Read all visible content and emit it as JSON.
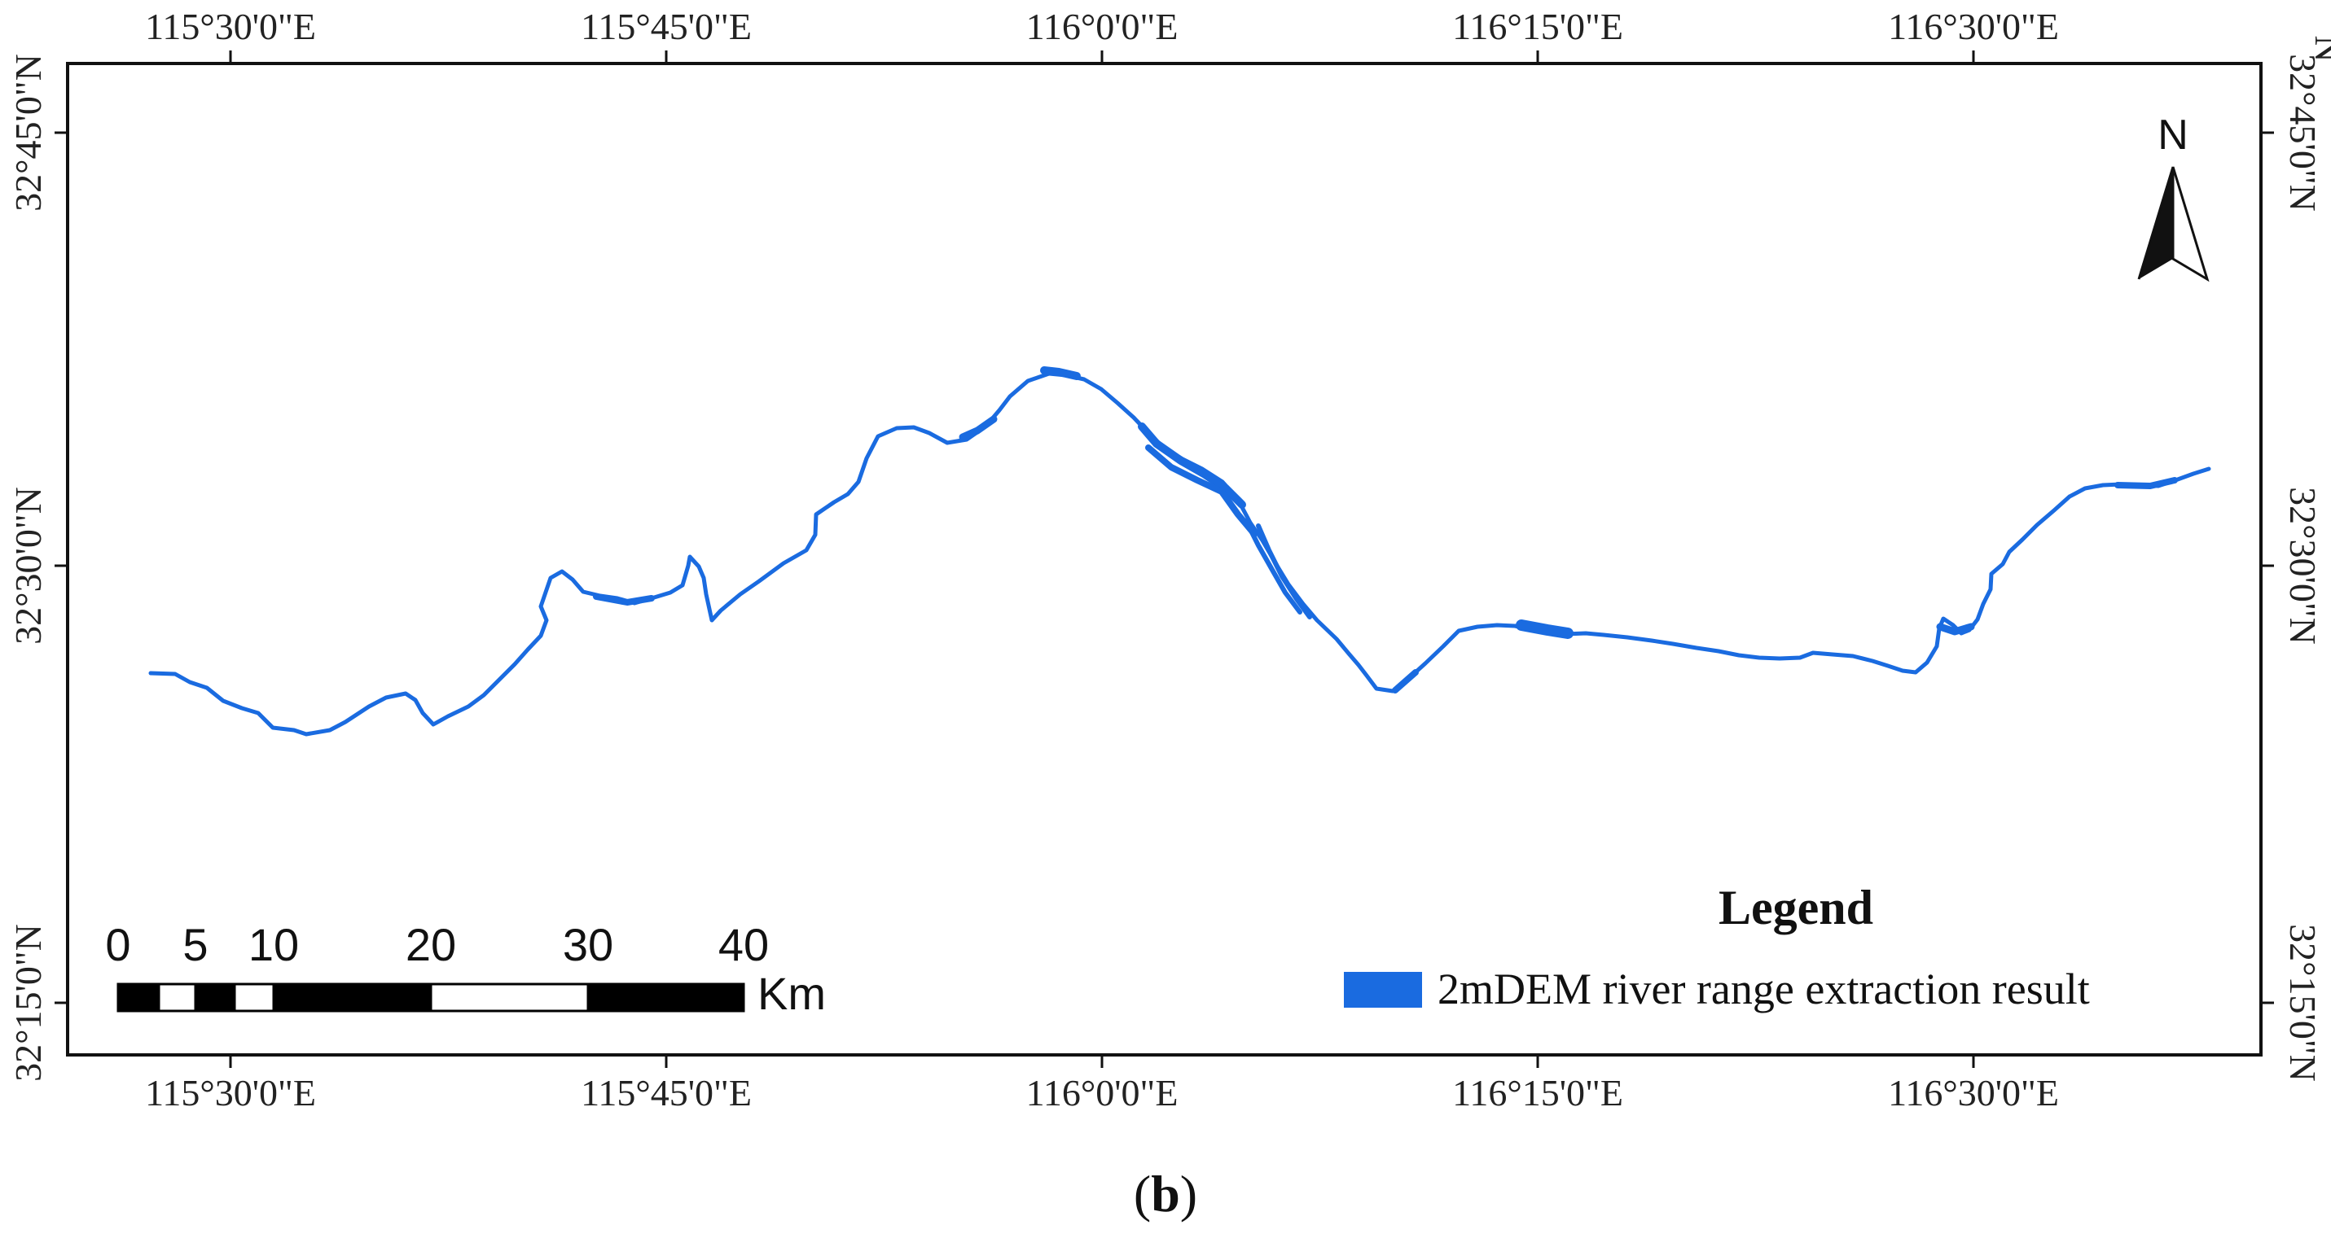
{
  "map": {
    "lon_labels": [
      "115°30'0\"E",
      "115°45'0\"E",
      "116°0'0\"E",
      "116°15'0\"E",
      "116°30'0\"E"
    ],
    "lat_labels": [
      "32°45'0\"N",
      "32°30'0\"N",
      "32°15'0\"N"
    ],
    "top_right_partial_lat_label": "N",
    "north_arrow_label": "N",
    "scale_bar": {
      "ticks": [
        "0",
        "5",
        "10",
        "20",
        "30",
        "40"
      ],
      "unit": "Km"
    },
    "legend": {
      "title": "Legend",
      "items": [
        {
          "label": "2mDEM river range extraction result",
          "color": "#1a6be0"
        }
      ]
    },
    "river_color": "#1a6be0"
  },
  "caption": {
    "open": "(",
    "letter": "b",
    "close": ")"
  }
}
